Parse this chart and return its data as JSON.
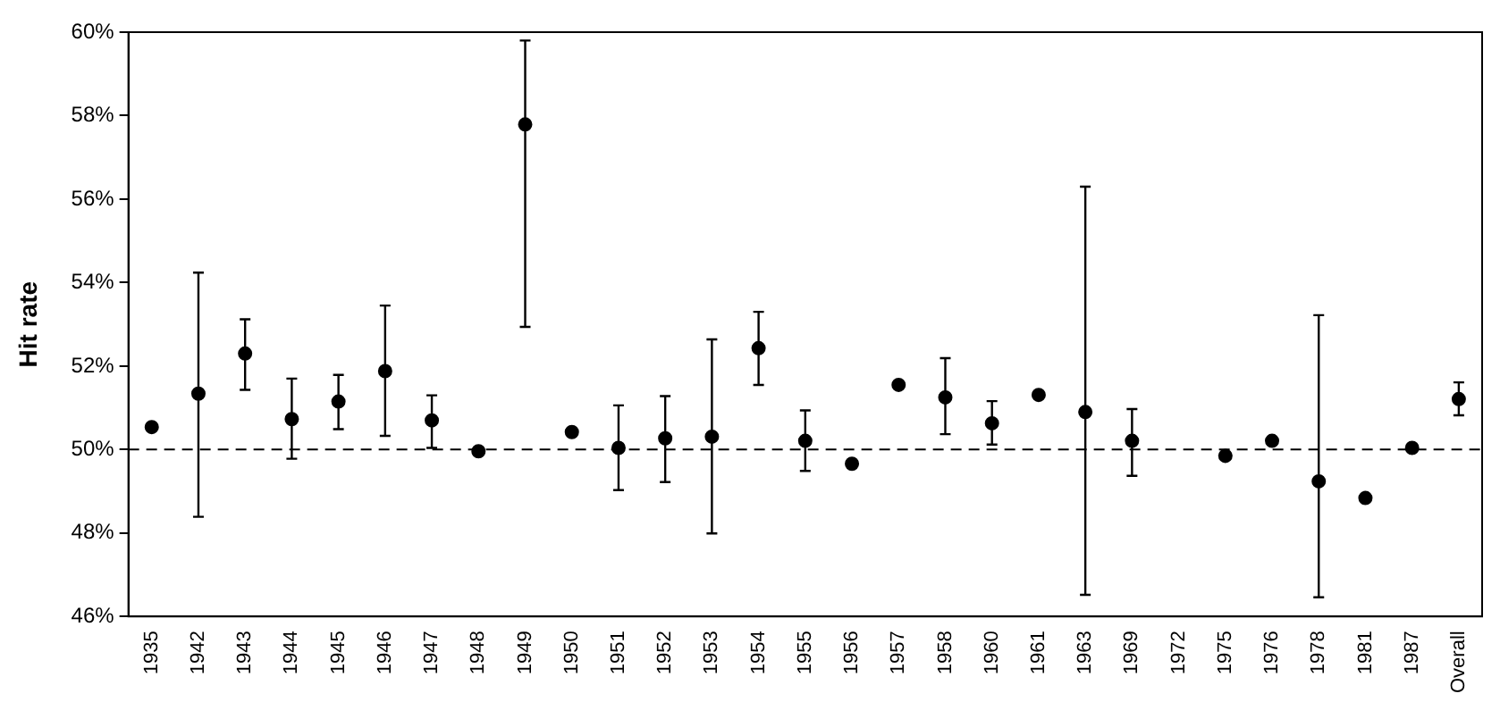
{
  "chart_data": {
    "type": "scatter",
    "ylabel": "Hit rate",
    "categories": [
      "1935",
      "1942",
      "1943",
      "1944",
      "1945",
      "1946",
      "1947",
      "1948",
      "1949",
      "1950",
      "1951",
      "1952",
      "1953",
      "1954",
      "1955",
      "1956",
      "1957",
      "1958",
      "1960",
      "1961",
      "1963",
      "1969",
      "1972",
      "1975",
      "1976",
      "1978",
      "1981",
      "1987",
      "Overall"
    ],
    "series": [
      {
        "color": "#000000",
        "values": [
          50.54,
          51.34,
          52.3,
          50.73,
          51.15,
          51.88,
          50.7,
          49.96,
          57.79,
          50.42,
          50.04,
          50.27,
          50.31,
          52.43,
          50.21,
          49.66,
          51.55,
          51.25,
          50.63,
          51.31,
          50.9,
          50.21,
          null,
          49.85,
          50.21,
          49.24,
          48.84,
          50.04,
          51.21
        ],
        "errors": [
          null,
          [
            48.39,
            54.24
          ],
          [
            51.43,
            53.12
          ],
          [
            49.78,
            51.7
          ],
          [
            50.49,
            51.79
          ],
          [
            50.33,
            53.45
          ],
          [
            50.04,
            51.3
          ],
          null,
          [
            52.94,
            59.8
          ],
          null,
          [
            49.03,
            51.06
          ],
          [
            49.22,
            51.28
          ],
          [
            47.99,
            52.64
          ],
          [
            51.55,
            53.3
          ],
          [
            49.49,
            50.94
          ],
          null,
          null,
          [
            50.37,
            52.19
          ],
          [
            50.12,
            51.16
          ],
          null,
          [
            46.52,
            56.3
          ],
          [
            49.37,
            50.97
          ],
          null,
          null,
          null,
          [
            46.46,
            53.22
          ],
          null,
          null,
          [
            50.82,
            51.61
          ]
        ]
      }
    ],
    "ylim": [
      46,
      60
    ],
    "yticks": [
      {
        "value": 46,
        "label": "46%"
      },
      {
        "value": 48,
        "label": "48%"
      },
      {
        "value": 50,
        "label": "50%"
      },
      {
        "value": 52,
        "label": "52%"
      },
      {
        "value": 54,
        "label": "54%"
      },
      {
        "value": 56,
        "label": "56%"
      },
      {
        "value": 58,
        "label": "58%"
      },
      {
        "value": 60,
        "label": "60%"
      }
    ],
    "ref_lines": [
      {
        "axis": "y",
        "value": 50,
        "color": "#000000",
        "line_style": "dashed"
      }
    ],
    "grid": false,
    "legend": false,
    "marker": "circle"
  }
}
